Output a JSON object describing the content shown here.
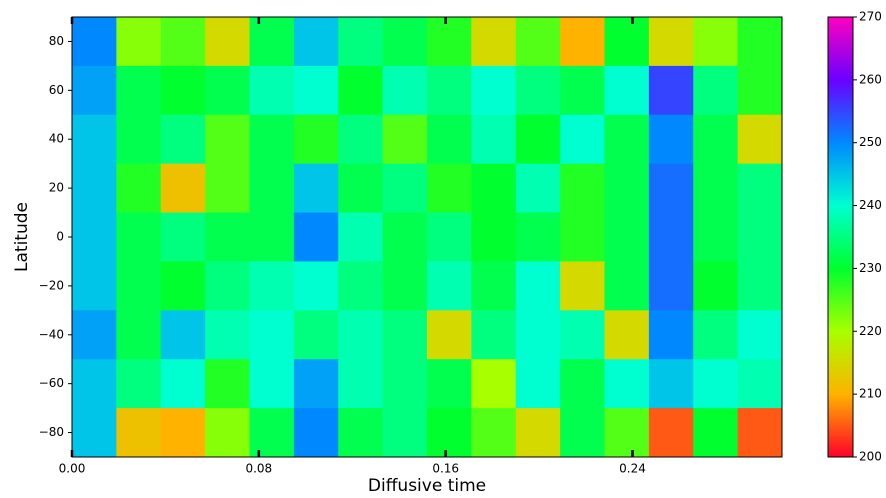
{
  "chart_data": {
    "type": "heatmap",
    "xlabel": "Diffusive time",
    "ylabel": "Latitude",
    "x": [
      0.0095,
      0.0285,
      0.0475,
      0.0665,
      0.0855,
      0.1045,
      0.1235,
      0.1425,
      0.1615,
      0.1805,
      0.1995,
      0.2185,
      0.2375,
      0.2565,
      0.2755,
      0.2945
    ],
    "y": [
      80,
      60,
      40,
      20,
      0,
      -20,
      -40,
      -60,
      -80
    ],
    "z": [
      [
        250,
        222,
        225,
        215,
        232,
        245,
        235,
        232,
        228,
        215,
        225,
        210,
        230,
        215,
        222,
        228
      ],
      [
        248,
        232,
        230,
        232,
        238,
        240,
        230,
        238,
        235,
        240,
        235,
        232,
        240,
        255,
        235,
        228
      ],
      [
        245,
        232,
        235,
        225,
        232,
        228,
        235,
        225,
        232,
        238,
        230,
        240,
        232,
        250,
        232,
        215
      ],
      [
        245,
        228,
        212,
        225,
        232,
        245,
        232,
        235,
        228,
        230,
        238,
        228,
        232,
        252,
        232,
        235
      ],
      [
        245,
        232,
        235,
        232,
        232,
        250,
        238,
        232,
        235,
        230,
        232,
        228,
        232,
        252,
        232,
        235
      ],
      [
        245,
        232,
        230,
        235,
        238,
        240,
        235,
        232,
        238,
        232,
        240,
        215,
        232,
        252,
        230,
        235
      ],
      [
        248,
        232,
        245,
        238,
        240,
        235,
        238,
        235,
        215,
        235,
        240,
        238,
        215,
        250,
        235,
        240
      ],
      [
        245,
        235,
        240,
        228,
        240,
        248,
        238,
        235,
        232,
        220,
        240,
        232,
        240,
        245,
        240,
        238
      ],
      [
        245,
        212,
        210,
        222,
        232,
        250,
        232,
        235,
        230,
        225,
        215,
        232,
        225,
        205,
        230,
        205
      ]
    ],
    "xlim": [
      0,
      0.304
    ],
    "ylim": [
      -90,
      90
    ],
    "xticks": [
      {
        "value": 0,
        "label": "0.00"
      },
      0.08,
      0.16,
      0.24
    ],
    "yticks": [
      {
        "value": -80,
        "label": "−80"
      },
      {
        "value": -60,
        "label": "−60"
      },
      {
        "value": -40,
        "label": "−40"
      },
      {
        "value": -20,
        "label": "−20"
      },
      0,
      20,
      40,
      60,
      80
    ],
    "clim": [
      200,
      270
    ],
    "cticks": [
      200,
      210,
      220,
      230,
      240,
      250,
      260,
      270
    ],
    "colormap": [
      "#ff0029",
      "#ffb200",
      "#a8ff00",
      "#00ff2e",
      "#00ffd0",
      "#0089ff",
      "#6a00ff",
      "#ff00bf"
    ]
  }
}
